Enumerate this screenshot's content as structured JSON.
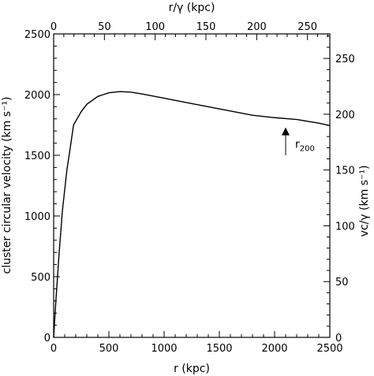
{
  "chart_data": {
    "type": "line",
    "title": "",
    "xlabel": "r (kpc)",
    "ylabel": "cluster circular velocity (km s⁻¹)",
    "xlim": [
      0,
      2500
    ],
    "ylim": [
      0,
      2500
    ],
    "xticks": [
      0,
      500,
      1000,
      1500,
      2000,
      2500
    ],
    "yticks": [
      0,
      500,
      1000,
      1500,
      2000,
      2500
    ],
    "x_minor_step": 100,
    "y_minor_step": 100,
    "top_axis": {
      "label": "r/γ (kpc)",
      "lim": [
        0,
        272
      ],
      "ticks": [
        0,
        50,
        100,
        150,
        200,
        250
      ],
      "minor_step": 10
    },
    "right_axis": {
      "label": "vᴄ/γ (km s⁻¹)",
      "lim": [
        0,
        272
      ],
      "ticks": [
        0,
        50,
        100,
        150,
        200,
        250
      ],
      "minor_step": 10
    },
    "series": [
      {
        "x": [
          0,
          20,
          50,
          80,
          120,
          150,
          180,
          250,
          300,
          400,
          500,
          600,
          700,
          800,
          1000,
          1200,
          1400,
          1600,
          1800,
          2000,
          2200,
          2300,
          2400,
          2500
        ],
        "y": [
          0,
          300,
          700,
          1050,
          1380,
          1560,
          1750,
          1860,
          1920,
          1985,
          2015,
          2025,
          2020,
          2005,
          1970,
          1935,
          1900,
          1865,
          1830,
          1810,
          1795,
          1780,
          1765,
          1745
        ]
      }
    ],
    "annotations": [
      {
        "text": "r",
        "subscript": "200",
        "arrow_x": 2100,
        "arrow_y_from": 1500,
        "arrow_y_to": 1730
      }
    ],
    "grid": false
  }
}
